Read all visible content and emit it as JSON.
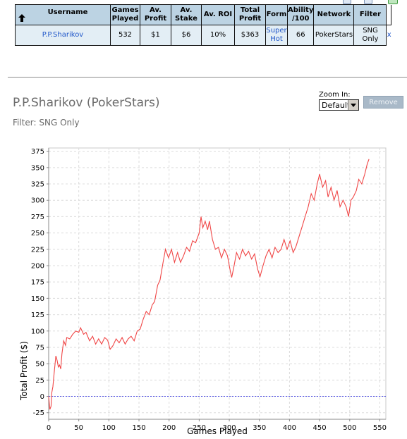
{
  "table": {
    "headers": [
      "Username",
      "Games Played",
      "Av. Profit",
      "Av. Stake",
      "Av. ROI",
      "Total Profit",
      "Form",
      "Ability /100",
      "Network",
      "Filter"
    ],
    "row": {
      "username": "P.P.Sharikov",
      "games_played": "532",
      "av_profit": "$1",
      "av_stake": "$6",
      "av_roi": "10%",
      "total_profit": "$363",
      "form": "Super Hot",
      "ability": "66",
      "network": "PokerStars",
      "filter": "SNG Only",
      "remove_link": "x"
    }
  },
  "player": {
    "title": "P.P.Sharikov (PokerStars)",
    "filter_text": "Filter: SNG Only"
  },
  "zoom": {
    "label": "Zoom In:",
    "selected": "Default"
  },
  "remove_button": "Remove",
  "colors": {
    "header_bg": "#bcd3e3",
    "row_bg": "#e3eef5",
    "line": "#f04646",
    "zero_line": "#5a5ae6",
    "link": "#1f56c9"
  },
  "chart_data": {
    "type": "line",
    "xlabel": "Games Played",
    "ylabel": "Total Profit ($)",
    "xlim": [
      0,
      560
    ],
    "ylim": [
      -35,
      380
    ],
    "x_ticks": [
      0,
      50,
      100,
      150,
      200,
      250,
      300,
      350,
      400,
      450,
      500,
      550
    ],
    "y_ticks": [
      -25,
      0,
      25,
      50,
      75,
      100,
      125,
      150,
      175,
      200,
      225,
      250,
      275,
      300,
      325,
      350,
      375
    ],
    "grid": true,
    "zero_line": 0,
    "series": [
      {
        "values": [
          [
            0,
            0
          ],
          [
            2,
            -20
          ],
          [
            4,
            -15
          ],
          [
            5,
            5
          ],
          [
            7,
            15
          ],
          [
            9,
            35
          ],
          [
            12,
            62
          ],
          [
            14,
            55
          ],
          [
            16,
            45
          ],
          [
            18,
            48
          ],
          [
            20,
            42
          ],
          [
            22,
            65
          ],
          [
            25,
            85
          ],
          [
            28,
            78
          ],
          [
            30,
            90
          ],
          [
            35,
            88
          ],
          [
            40,
            95
          ],
          [
            45,
            100
          ],
          [
            50,
            98
          ],
          [
            53,
            105
          ],
          [
            58,
            95
          ],
          [
            62,
            98
          ],
          [
            68,
            85
          ],
          [
            73,
            92
          ],
          [
            78,
            80
          ],
          [
            83,
            88
          ],
          [
            88,
            80
          ],
          [
            93,
            90
          ],
          [
            98,
            86
          ],
          [
            102,
            72
          ],
          [
            107,
            78
          ],
          [
            112,
            88
          ],
          [
            117,
            82
          ],
          [
            122,
            90
          ],
          [
            127,
            80
          ],
          [
            132,
            88
          ],
          [
            137,
            92
          ],
          [
            142,
            85
          ],
          [
            147,
            100
          ],
          [
            152,
            103
          ],
          [
            157,
            118
          ],
          [
            162,
            130
          ],
          [
            167,
            125
          ],
          [
            172,
            140
          ],
          [
            176,
            145
          ],
          [
            181,
            170
          ],
          [
            185,
            178
          ],
          [
            190,
            205
          ],
          [
            194,
            225
          ],
          [
            199,
            212
          ],
          [
            204,
            225
          ],
          [
            209,
            205
          ],
          [
            214,
            220
          ],
          [
            219,
            205
          ],
          [
            224,
            215
          ],
          [
            229,
            228
          ],
          [
            234,
            222
          ],
          [
            239,
            238
          ],
          [
            244,
            235
          ],
          [
            250,
            250
          ],
          [
            253,
            275
          ],
          [
            256,
            258
          ],
          [
            260,
            268
          ],
          [
            264,
            255
          ],
          [
            267,
            268
          ],
          [
            272,
            240
          ],
          [
            277,
            225
          ],
          [
            282,
            228
          ],
          [
            287,
            212
          ],
          [
            292,
            225
          ],
          [
            297,
            215
          ],
          [
            302,
            190
          ],
          [
            304,
            182
          ],
          [
            308,
            200
          ],
          [
            312,
            220
          ],
          [
            317,
            210
          ],
          [
            322,
            225
          ],
          [
            327,
            215
          ],
          [
            332,
            222
          ],
          [
            337,
            210
          ],
          [
            342,
            218
          ],
          [
            347,
            195
          ],
          [
            351,
            183
          ],
          [
            356,
            200
          ],
          [
            361,
            215
          ],
          [
            366,
            225
          ],
          [
            371,
            212
          ],
          [
            376,
            228
          ],
          [
            381,
            220
          ],
          [
            386,
            225
          ],
          [
            391,
            240
          ],
          [
            396,
            225
          ],
          [
            401,
            238
          ],
          [
            406,
            220
          ],
          [
            411,
            230
          ],
          [
            416,
            245
          ],
          [
            421,
            260
          ],
          [
            426,
            275
          ],
          [
            431,
            290
          ],
          [
            436,
            310
          ],
          [
            441,
            300
          ],
          [
            446,
            325
          ],
          [
            450,
            340
          ],
          [
            455,
            320
          ],
          [
            460,
            330
          ],
          [
            464,
            305
          ],
          [
            469,
            320
          ],
          [
            474,
            300
          ],
          [
            479,
            315
          ],
          [
            484,
            290
          ],
          [
            489,
            300
          ],
          [
            494,
            290
          ],
          [
            498,
            275
          ],
          [
            502,
            300
          ],
          [
            506,
            305
          ],
          [
            511,
            315
          ],
          [
            515,
            332
          ],
          [
            520,
            325
          ],
          [
            525,
            340
          ],
          [
            529,
            355
          ],
          [
            532,
            363
          ]
        ]
      }
    ]
  }
}
